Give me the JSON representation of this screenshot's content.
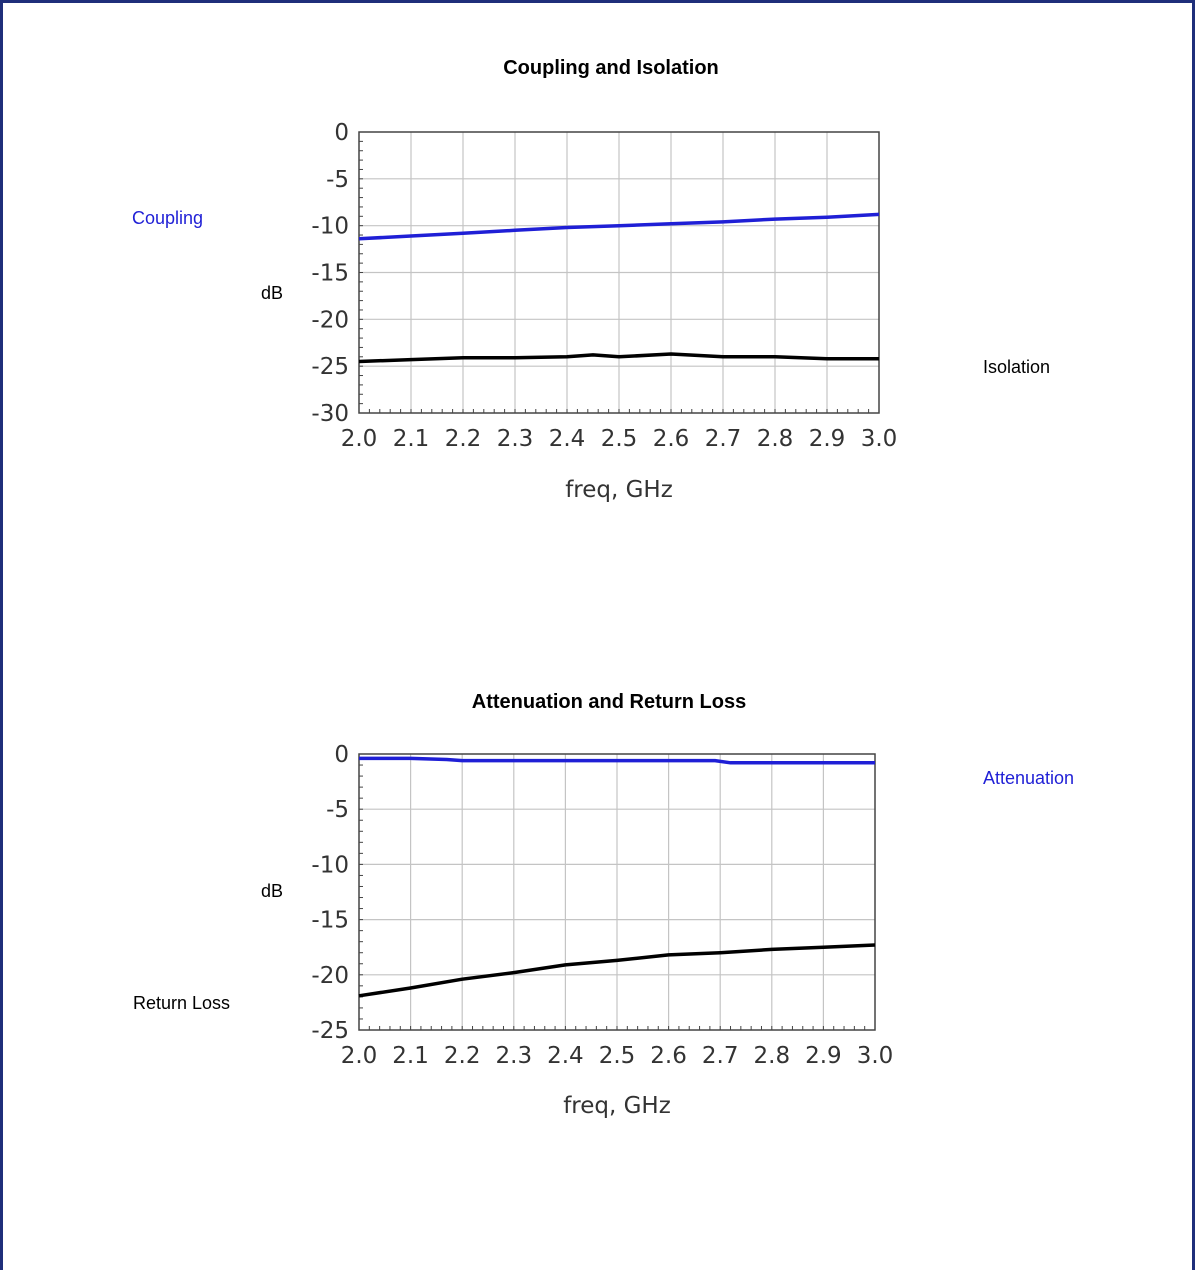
{
  "colors": {
    "border": "#1f2f7a",
    "blue": "#1f1fd6",
    "black": "#000000",
    "grid": "#c4c4c4",
    "axis": "#444444"
  },
  "chart_data": [
    {
      "type": "line",
      "title": "Coupling and Isolation",
      "ylabel": "dB",
      "xlabel": "freq, GHz",
      "xlim": [
        2.0,
        3.0
      ],
      "ylim": [
        -30,
        0
      ],
      "x_ticks": [
        "2.0",
        "2.1",
        "2.2",
        "2.3",
        "2.4",
        "2.5",
        "2.6",
        "2.7",
        "2.8",
        "2.9",
        "3.0"
      ],
      "y_ticks": [
        "0",
        "-5",
        "-10",
        "-15",
        "-20",
        "-25",
        "-30"
      ],
      "grid": true,
      "series": [
        {
          "name": "Coupling",
          "color": "#1f1fd6",
          "label_position": "left",
          "x": [
            2.0,
            2.1,
            2.2,
            2.3,
            2.4,
            2.5,
            2.6,
            2.7,
            2.8,
            2.9,
            3.0
          ],
          "y": [
            -11.4,
            -11.1,
            -10.8,
            -10.5,
            -10.2,
            -10.0,
            -9.8,
            -9.6,
            -9.3,
            -9.1,
            -8.8
          ]
        },
        {
          "name": "Isolation",
          "color": "#000000",
          "label_position": "right",
          "x": [
            2.0,
            2.1,
            2.2,
            2.3,
            2.4,
            2.45,
            2.5,
            2.6,
            2.7,
            2.8,
            2.9,
            3.0
          ],
          "y": [
            -24.5,
            -24.3,
            -24.1,
            -24.1,
            -24.0,
            -23.8,
            -24.0,
            -23.7,
            -24.0,
            -24.0,
            -24.2,
            -24.2
          ]
        }
      ]
    },
    {
      "type": "line",
      "title": "Attenuation and Return Loss",
      "ylabel": "dB",
      "xlabel": "freq, GHz",
      "xlim": [
        2.0,
        3.0
      ],
      "ylim": [
        -25,
        0
      ],
      "x_ticks": [
        "2.0",
        "2.1",
        "2.2",
        "2.3",
        "2.4",
        "2.5",
        "2.6",
        "2.7",
        "2.8",
        "2.9",
        "3.0"
      ],
      "y_ticks": [
        "0",
        "-5",
        "-10",
        "-15",
        "-20",
        "-25"
      ],
      "grid": true,
      "series": [
        {
          "name": "Attenuation",
          "color": "#1f1fd6",
          "label_position": "right",
          "x": [
            2.0,
            2.1,
            2.17,
            2.2,
            2.3,
            2.4,
            2.5,
            2.6,
            2.69,
            2.72,
            2.8,
            2.9,
            3.0
          ],
          "y": [
            -0.4,
            -0.4,
            -0.5,
            -0.6,
            -0.6,
            -0.6,
            -0.6,
            -0.6,
            -0.6,
            -0.8,
            -0.8,
            -0.8,
            -0.8
          ]
        },
        {
          "name": "Return Loss",
          "color": "#000000",
          "label_position": "left",
          "x": [
            2.0,
            2.1,
            2.2,
            2.3,
            2.4,
            2.5,
            2.6,
            2.7,
            2.8,
            2.9,
            3.0
          ],
          "y": [
            -21.9,
            -21.2,
            -20.4,
            -19.8,
            -19.1,
            -18.7,
            -18.2,
            -18.0,
            -17.7,
            -17.5,
            -17.3
          ]
        }
      ]
    }
  ]
}
